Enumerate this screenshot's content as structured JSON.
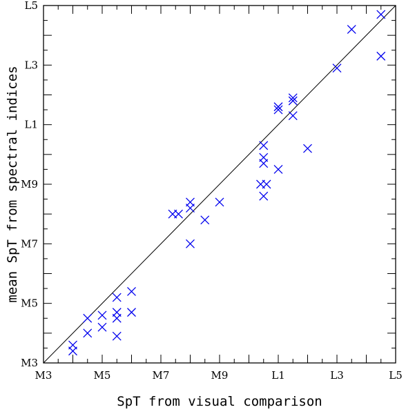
{
  "chart_data": {
    "type": "scatter",
    "title": "",
    "xlabel": "SpT from visual comparison",
    "ylabel": "mean SpT from spectral indices",
    "xlim": [
      3,
      15
    ],
    "ylim": [
      3,
      15
    ],
    "x_ticks": [
      {
        "value": 3,
        "label": "M3"
      },
      {
        "value": 5,
        "label": "M5"
      },
      {
        "value": 7,
        "label": "M7"
      },
      {
        "value": 9,
        "label": "M9"
      },
      {
        "value": 11,
        "label": "L1"
      },
      {
        "value": 13,
        "label": "L3"
      },
      {
        "value": 15,
        "label": "L5"
      }
    ],
    "y_ticks": [
      {
        "value": 3,
        "label": "M3"
      },
      {
        "value": 5,
        "label": "M5"
      },
      {
        "value": 7,
        "label": "M7"
      },
      {
        "value": 9,
        "label": "M9"
      },
      {
        "value": 11,
        "label": "L1"
      },
      {
        "value": 13,
        "label": "L3"
      },
      {
        "value": 15,
        "label": "L5"
      }
    ],
    "reference_line": {
      "type": "one-to-one",
      "from": [
        3,
        3
      ],
      "to": [
        15,
        15
      ]
    },
    "grid": false,
    "marker": "x",
    "marker_color": "#0000ee",
    "series": [
      {
        "points": [
          {
            "x": 4.0,
            "y": 3.6
          },
          {
            "x": 4.0,
            "y": 3.4
          },
          {
            "x": 4.5,
            "y": 4.5
          },
          {
            "x": 4.5,
            "y": 4.0
          },
          {
            "x": 5.0,
            "y": 4.6
          },
          {
            "x": 5.0,
            "y": 4.2
          },
          {
            "x": 5.5,
            "y": 5.2
          },
          {
            "x": 5.5,
            "y": 4.7
          },
          {
            "x": 5.5,
            "y": 4.5
          },
          {
            "x": 5.5,
            "y": 3.9
          },
          {
            "x": 6.0,
            "y": 5.4
          },
          {
            "x": 6.0,
            "y": 4.7
          },
          {
            "x": 7.4,
            "y": 8.0
          },
          {
            "x": 7.6,
            "y": 8.0
          },
          {
            "x": 8.0,
            "y": 8.4
          },
          {
            "x": 8.0,
            "y": 8.2
          },
          {
            "x": 8.0,
            "y": 7.0
          },
          {
            "x": 8.5,
            "y": 7.8
          },
          {
            "x": 9.0,
            "y": 8.4
          },
          {
            "x": 10.4,
            "y": 9.0
          },
          {
            "x": 10.5,
            "y": 10.3
          },
          {
            "x": 10.5,
            "y": 9.9
          },
          {
            "x": 10.5,
            "y": 9.7
          },
          {
            "x": 10.5,
            "y": 8.6
          },
          {
            "x": 10.6,
            "y": 9.0
          },
          {
            "x": 11.0,
            "y": 11.6
          },
          {
            "x": 11.0,
            "y": 11.5
          },
          {
            "x": 11.0,
            "y": 9.5
          },
          {
            "x": 11.5,
            "y": 11.9
          },
          {
            "x": 11.5,
            "y": 11.8
          },
          {
            "x": 11.5,
            "y": 11.3
          },
          {
            "x": 12.0,
            "y": 10.2
          },
          {
            "x": 13.0,
            "y": 12.9
          },
          {
            "x": 13.5,
            "y": 14.2
          },
          {
            "x": 14.5,
            "y": 14.7
          },
          {
            "x": 14.5,
            "y": 13.3
          }
        ]
      }
    ]
  }
}
